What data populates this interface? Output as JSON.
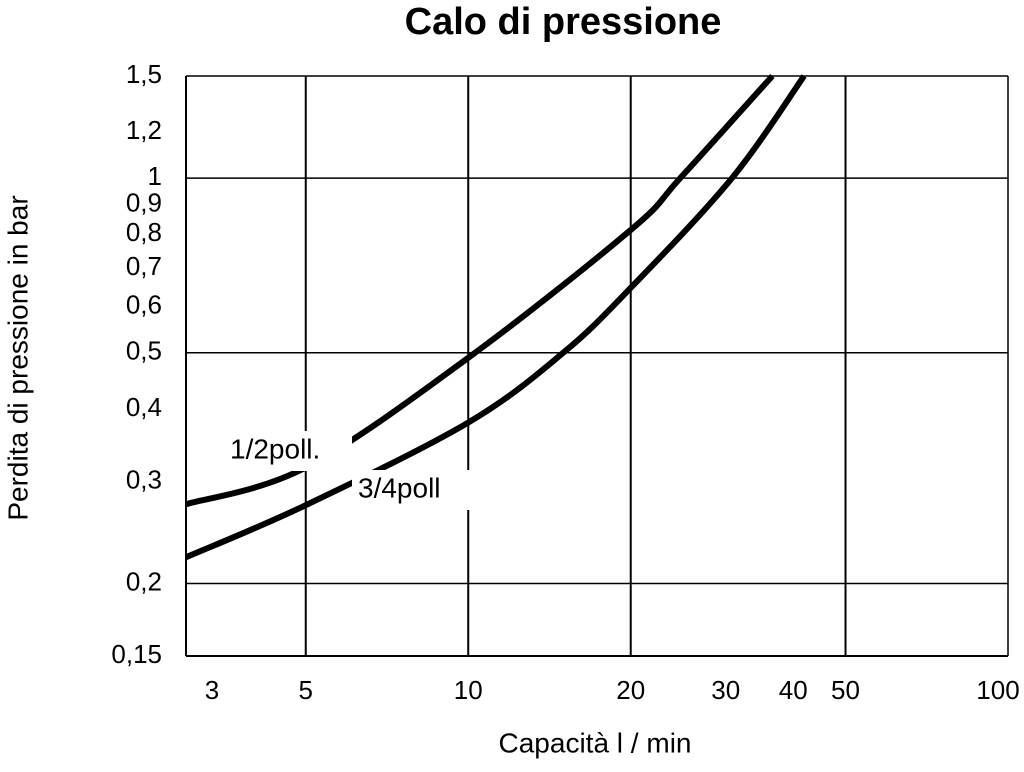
{
  "chart_data": {
    "type": "line",
    "title": "Calo di pressione",
    "x_label": "Capacità l / min",
    "y_label": "Perdita di pressione  in bar",
    "log_x": true,
    "log_y": true,
    "xlim": [
      3,
      100
    ],
    "ylim": [
      0.15,
      1.5
    ],
    "xticks": [
      3,
      5,
      10,
      20,
      30,
      40,
      50,
      100
    ],
    "yticks": [
      {
        "value": 1.5,
        "label": "1,5"
      },
      {
        "value": 1.2,
        "label": "1,2"
      },
      1,
      {
        "value": 0.9,
        "label": "0,9"
      },
      {
        "value": 0.8,
        "label": "0,8"
      },
      {
        "value": 0.7,
        "label": "0,7"
      },
      {
        "value": 0.6,
        "label": "0,6"
      },
      {
        "value": 0.5,
        "label": "0,5"
      },
      {
        "value": 0.4,
        "label": "0,4"
      },
      {
        "value": 0.3,
        "label": "0,3"
      },
      {
        "value": 0.2,
        "label": "0,2"
      },
      {
        "value": 0.15,
        "label": "0,15"
      }
    ],
    "xgrid": [
      5,
      10,
      20,
      50
    ],
    "ygrid": [
      0.2,
      0.5,
      1
    ],
    "series": [
      {
        "name": "1/2poll.",
        "color": "#000000",
        "x": [
          3,
          5,
          10,
          20,
          24.7,
          36.6
        ],
        "values": [
          0.274,
          0.317,
          0.49,
          0.814,
          1,
          1.5
        ]
      },
      {
        "name": "3/4poll",
        "color": "#000000",
        "x": [
          3,
          5,
          10,
          15,
          20,
          30.8,
          41.9
        ],
        "values": [
          0.222,
          0.273,
          0.379,
          0.5,
          0.647,
          1,
          1.5
        ]
      }
    ]
  }
}
